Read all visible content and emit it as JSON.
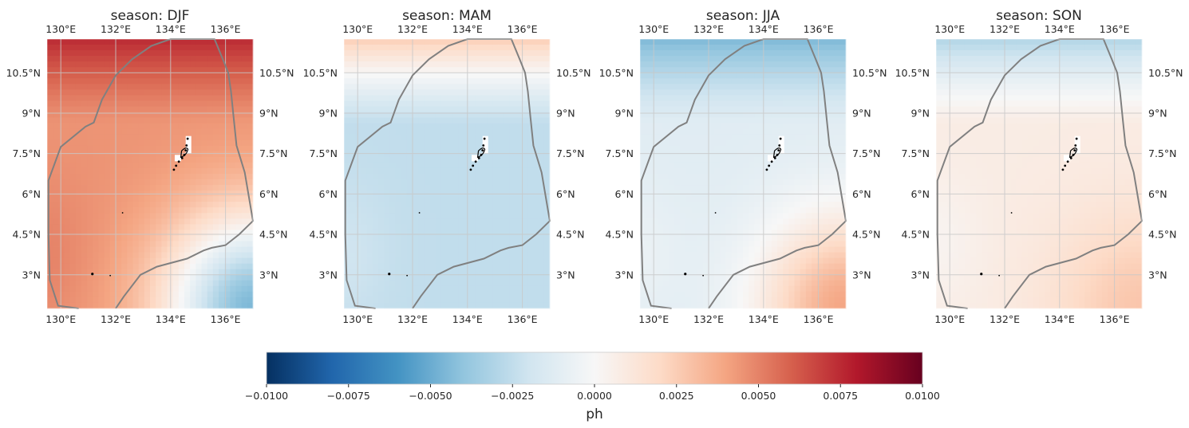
{
  "figure": {
    "variable": "ph",
    "colormap": "RdBu_r",
    "grid": true
  },
  "lon_ticks": [
    "130°E",
    "132°E",
    "134°E",
    "136°E"
  ],
  "lon_values": [
    130,
    132,
    134,
    136
  ],
  "lat_ticks": [
    "10.5°N",
    "9°N",
    "7.5°N",
    "6°N",
    "4.5°N",
    "3°N"
  ],
  "lat_values": [
    10.5,
    9,
    7.5,
    6,
    4.5,
    3
  ],
  "extent": {
    "lon": [
      129.5,
      137
    ],
    "lat": [
      1.75,
      11.75
    ]
  },
  "colorbar": {
    "label": "ph",
    "min": -0.01,
    "max": 0.01,
    "ticks": [
      "−0.0100",
      "−0.0075",
      "−0.0050",
      "−0.0025",
      "0.0000",
      "0.0025",
      "0.0050",
      "0.0075",
      "0.0100"
    ],
    "tick_values": [
      -0.01,
      -0.0075,
      -0.005,
      -0.0025,
      0,
      0.0025,
      0.005,
      0.0075,
      0.01
    ]
  },
  "chart_data": {
    "type": "heatmap",
    "panels": [
      {
        "title": "season: DJF",
        "field": {
          "base": 0.0045,
          "north": 0.0075,
          "southeast": -0.0055,
          "southwest": 0.001,
          "west": 0.0005
        }
      },
      {
        "title": "season: MAM",
        "field": {
          "base": -0.0025,
          "north": 0.0025,
          "southeast": -0.0025,
          "southwest": 0.001,
          "west": 0.0005
        }
      },
      {
        "title": "season: JJA",
        "field": {
          "base": -0.0012,
          "north": -0.0045,
          "southeast": 0.0045,
          "southwest": 0.001,
          "west": 0.0005
        }
      },
      {
        "title": "season: SON",
        "field": {
          "base": 0.0008,
          "north": -0.003,
          "southeast": 0.003,
          "southwest": -0.0012,
          "west": 0.0
        }
      }
    ]
  }
}
